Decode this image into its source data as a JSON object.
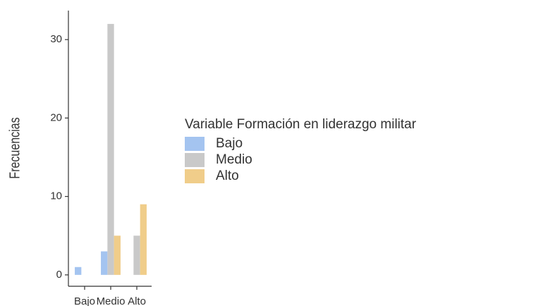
{
  "chart_data": {
    "type": "bar",
    "y_label": "Frecuencias",
    "legend_title": "Variable Formación en liderazgo militar",
    "categories": [
      "Bajo",
      "Medio",
      "Alto"
    ],
    "series": [
      {
        "name": "Bajo",
        "color": "#a4c4f0",
        "values": [
          1,
          3,
          0
        ]
      },
      {
        "name": "Medio",
        "color": "#c9c9c9",
        "values": [
          0,
          32,
          5
        ]
      },
      {
        "name": "Alto",
        "color": "#f0cd8a",
        "values": [
          0,
          5,
          9
        ]
      }
    ],
    "ylim": [
      -1.45,
      33.7
    ],
    "yticks": [
      0,
      10,
      20,
      30
    ],
    "grid": false,
    "legend": "right"
  }
}
